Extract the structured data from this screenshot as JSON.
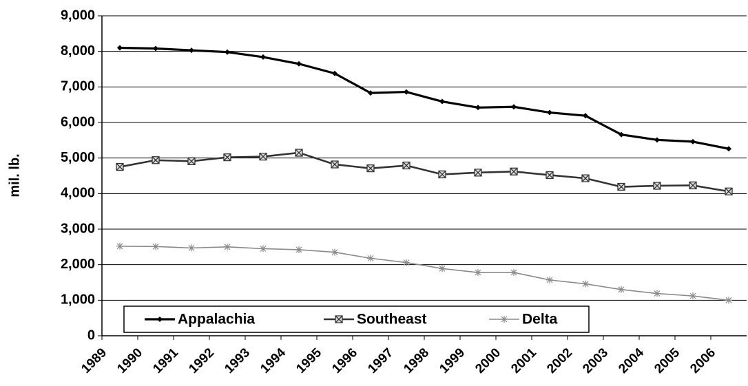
{
  "chart_data": {
    "type": "line",
    "y_label": "mil. lb.",
    "categories": [
      "1989",
      "1990",
      "1991",
      "1992",
      "1993",
      "1994",
      "1995",
      "1996",
      "1997",
      "1998",
      "1999",
      "2000",
      "2001",
      "2002",
      "2003",
      "2004",
      "2005",
      "2006"
    ],
    "series": [
      {
        "name": "Appalachia",
        "color": "#000000",
        "marker": "diamond",
        "values": [
          8100,
          8080,
          8030,
          7980,
          7840,
          7650,
          7380,
          6830,
          6860,
          6590,
          6420,
          6440,
          6280,
          6190,
          5660,
          5510,
          5460,
          5260
        ]
      },
      {
        "name": "Southeast",
        "color": "#333333",
        "marker": "square",
        "values": [
          4750,
          4940,
          4910,
          5020,
          5040,
          5150,
          4820,
          4710,
          4790,
          4540,
          4590,
          4620,
          4520,
          4430,
          4190,
          4220,
          4230,
          4060
        ]
      },
      {
        "name": "Delta",
        "color": "#8a8a8a",
        "marker": "star",
        "values": [
          2520,
          2510,
          2470,
          2500,
          2450,
          2420,
          2350,
          2180,
          2060,
          1890,
          1780,
          1780,
          1570,
          1460,
          1300,
          1190,
          1120,
          1000
        ]
      }
    ],
    "ylim": [
      0,
      9000
    ],
    "yticks": [
      0,
      {
        "value": 1000,
        "label": "1,000"
      },
      {
        "value": 2000,
        "label": "2,000"
      },
      {
        "value": 3000,
        "label": "3,000"
      },
      {
        "value": 4000,
        "label": "4,000"
      },
      {
        "value": 5000,
        "label": "5,000"
      },
      {
        "value": 6000,
        "label": "6,000"
      },
      {
        "value": 7000,
        "label": "7,000"
      },
      {
        "value": 8000,
        "label": "8,000"
      },
      {
        "value": 9000,
        "label": "9,000"
      }
    ],
    "grid": true,
    "legend": "lower left"
  }
}
